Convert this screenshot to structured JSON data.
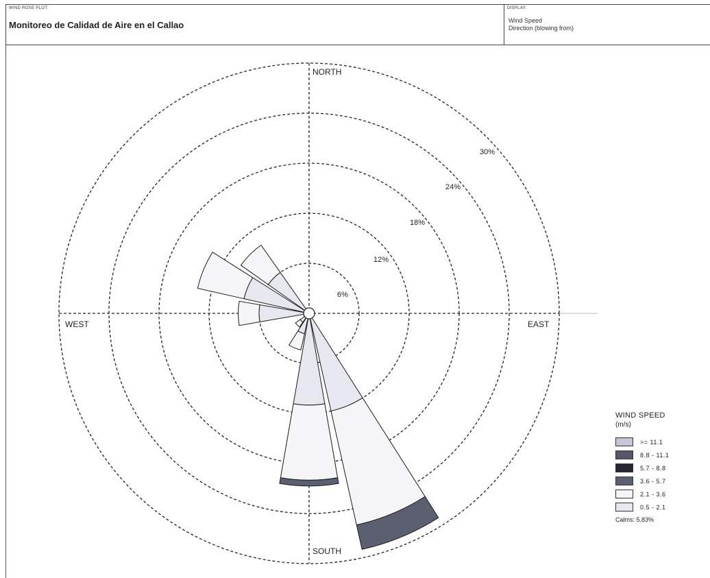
{
  "header": {
    "small_label": "WIND ROSE PLOT:",
    "title": "Monitoreo de Calidad de Aire en el Callao",
    "display_label": "DISPLAY:",
    "display_line1": "Wind Speed",
    "display_line2": "Direction (blowing from)"
  },
  "chart_data": {
    "type": "wind_rose",
    "title": "Monitoreo de Calidad de Aire en el Callao",
    "display": [
      "Wind Speed",
      "Direction (blowing from)"
    ],
    "direction_labels": {
      "north": "NORTH",
      "east": "EAST",
      "south": "SOUTH",
      "west": "WEST"
    },
    "ring_labels": [
      "6%",
      "12%",
      "18%",
      "24%",
      "30%"
    ],
    "ring_values": [
      6,
      12,
      18,
      24,
      30
    ],
    "max_percent": 30,
    "sector_width_deg": 22.5,
    "legend_title": "WIND SPEED",
    "legend_unit": "(m/s)",
    "bins": [
      {
        "label": ">= 11.1",
        "color": "#c4c5d6"
      },
      {
        "label": "8.8 - 11.1",
        "color": "#55566a"
      },
      {
        "label": "5.7 - 8.8",
        "color": "#252833"
      },
      {
        "label": "3.6 - 5.7",
        "color": "#5c5f70"
      },
      {
        "label": "2.1 - 3.6",
        "color": "#f5f5f8"
      },
      {
        "label": "0.5 - 2.1",
        "color": "#e6e7ef"
      }
    ],
    "directions": [
      {
        "dir": "N",
        "angle": 0,
        "segments": []
      },
      {
        "dir": "NNE",
        "angle": 22.5,
        "segments": []
      },
      {
        "dir": "NE",
        "angle": 45,
        "segments": []
      },
      {
        "dir": "ENE",
        "angle": 67.5,
        "segments": []
      },
      {
        "dir": "E",
        "angle": 90,
        "segments": []
      },
      {
        "dir": "ESE",
        "angle": 112.5,
        "segments": []
      },
      {
        "dir": "SE",
        "angle": 135,
        "segments": []
      },
      {
        "dir": "SSE",
        "angle": 157.5,
        "segments": [
          {
            "bin": "0.5 - 2.1",
            "value": 12.0
          },
          {
            "bin": "2.1 - 3.6",
            "value": 14.0
          },
          {
            "bin": "3.6 - 5.7",
            "value": 3.0
          }
        ]
      },
      {
        "dir": "S",
        "angle": 180,
        "segments": [
          {
            "bin": "0.5 - 2.1",
            "value": 11.0
          },
          {
            "bin": "2.1 - 3.6",
            "value": 9.0
          },
          {
            "bin": "3.6 - 5.7",
            "value": 0.7
          }
        ]
      },
      {
        "dir": "SSW",
        "angle": 202.5,
        "segments": [
          {
            "bin": "0.5 - 2.1",
            "value": 2.5
          },
          {
            "bin": "2.1 - 3.6",
            "value": 2.0
          }
        ]
      },
      {
        "dir": "SW",
        "angle": 225,
        "segments": [
          {
            "bin": "0.5 - 2.1",
            "value": 1.3
          },
          {
            "bin": "2.1 - 3.6",
            "value": 0.7
          }
        ]
      },
      {
        "dir": "WSW",
        "angle": 247.5,
        "segments": [
          {
            "bin": "0.5 - 2.1",
            "value": 0.6
          }
        ]
      },
      {
        "dir": "W",
        "angle": 270,
        "segments": [
          {
            "bin": "0.5 - 2.1",
            "value": 6.0
          },
          {
            "bin": "2.1 - 3.6",
            "value": 2.5
          }
        ]
      },
      {
        "dir": "WNW",
        "angle": 292.5,
        "segments": [
          {
            "bin": "0.5 - 2.1",
            "value": 8.0
          },
          {
            "bin": "2.1 - 3.6",
            "value": 5.7
          }
        ]
      },
      {
        "dir": "NW",
        "angle": 315,
        "segments": [
          {
            "bin": "0.5 - 2.1",
            "value": 6.0
          },
          {
            "bin": "2.1 - 3.6",
            "value": 4.0
          }
        ]
      },
      {
        "dir": "NNW",
        "angle": 337.5,
        "segments": []
      }
    ],
    "calms_percent": 5.83,
    "calms_label": "Calms: 5.83%"
  }
}
